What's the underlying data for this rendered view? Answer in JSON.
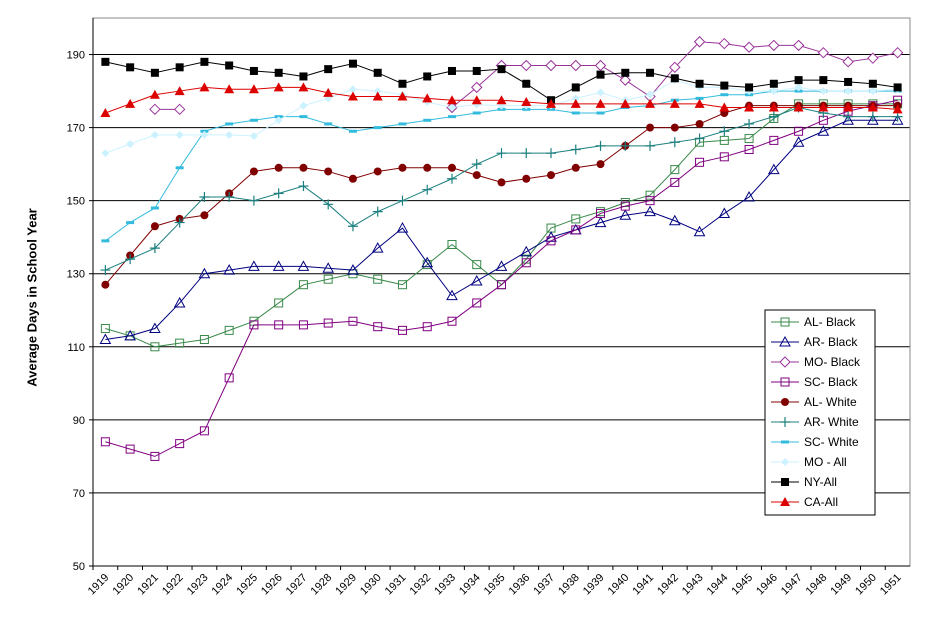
{
  "chart_data": {
    "type": "line",
    "title": "",
    "xlabel": "",
    "ylabel": "Average Days in School Year",
    "ylim": [
      50,
      200
    ],
    "yticks": [
      50,
      70,
      90,
      110,
      130,
      150,
      170,
      190
    ],
    "grid": "horizontal",
    "legend_position": "right",
    "categories": [
      "1919",
      "1920",
      "1921",
      "1922",
      "1923",
      "1924",
      "1925",
      "1926",
      "1927",
      "1928",
      "1929",
      "1930",
      "1931",
      "1932",
      "1933",
      "1934",
      "1935",
      "1936",
      "1937",
      "1938",
      "1939",
      "1940",
      "1941",
      "1942",
      "1943",
      "1944",
      "1945",
      "1946",
      "1947",
      "1948",
      "1949",
      "1950",
      "1951"
    ],
    "series": [
      {
        "name": "AL- Black",
        "color": "#3a8a4a",
        "marker": "square-open",
        "values": [
          115,
          113,
          110,
          111,
          112,
          114.5,
          117,
          122,
          127,
          128.5,
          130,
          128.5,
          127,
          132.5,
          138,
          132.5,
          127,
          134,
          142.5,
          145,
          147,
          149.5,
          151.5,
          158.5,
          166,
          166.5,
          167,
          172.5,
          176.5,
          176.5,
          176.5,
          176.5,
          176.5
        ]
      },
      {
        "name": "AR- Black",
        "color": "#000080",
        "marker": "triangle-open",
        "values": [
          112,
          113,
          115,
          122,
          130,
          131,
          132,
          132,
          132,
          131.5,
          131,
          137,
          142.5,
          133,
          124,
          128,
          132,
          136,
          140,
          142,
          144,
          146,
          147,
          144.5,
          141.5,
          146.5,
          151,
          158.5,
          166,
          169,
          172,
          172,
          172
        ]
      },
      {
        "name": "MO- Black",
        "color": "#993399",
        "marker": "diamond-open",
        "values": [
          null,
          null,
          175,
          175,
          null,
          null,
          null,
          null,
          null,
          null,
          null,
          null,
          null,
          null,
          175.5,
          181,
          187,
          187,
          187,
          187,
          187,
          183,
          178.5,
          186.5,
          193.5,
          193,
          192,
          192.5,
          192.5,
          190.5,
          188,
          189,
          190.5
        ]
      },
      {
        "name": "SC- Black",
        "color": "#800080",
        "marker": "square-open",
        "values": [
          84,
          82,
          80,
          83.5,
          87,
          101.5,
          116,
          116,
          116,
          116.5,
          117,
          115.5,
          114.5,
          115.5,
          117,
          122,
          127,
          133,
          139,
          142,
          146.5,
          148.5,
          150,
          155,
          160.5,
          162,
          164,
          166.5,
          169,
          172,
          174.5,
          176,
          177.5
        ]
      },
      {
        "name": "AL- White",
        "color": "#800000",
        "marker": "circle",
        "values": [
          127,
          135,
          143,
          145,
          146,
          152,
          158,
          159,
          159,
          158,
          156,
          158,
          159,
          159,
          159,
          157,
          155,
          156,
          157,
          159,
          160,
          165,
          170,
          170,
          171,
          174,
          176,
          176,
          176,
          176,
          176,
          176,
          176
        ]
      },
      {
        "name": "AR- White",
        "color": "#1b7f7f",
        "marker": "plus",
        "values": [
          131,
          134,
          137,
          144,
          151,
          151,
          150,
          152,
          154,
          149,
          143,
          147,
          150,
          153,
          156,
          160,
          163,
          163,
          163,
          164,
          165,
          165,
          165,
          166,
          167,
          169,
          171,
          173,
          175.5,
          174,
          173,
          173,
          173
        ]
      },
      {
        "name": "SC- White",
        "color": "#33bbdd",
        "marker": "dash",
        "values": [
          139,
          144,
          148,
          159,
          169,
          171,
          172,
          173,
          173,
          171,
          169,
          170,
          171,
          172,
          173,
          174,
          175,
          175,
          175,
          174,
          174,
          175.5,
          176,
          177.5,
          178,
          179,
          179,
          180,
          180,
          180,
          180,
          180,
          180
        ]
      },
      {
        "name": "MO - All",
        "color": "#ccf2ff",
        "marker": "diamond",
        "values": [
          163,
          165.5,
          168,
          168,
          168,
          168,
          167.7,
          172,
          176,
          178,
          180.5,
          180,
          179,
          177,
          175.5,
          176.3,
          176,
          176,
          176,
          178,
          179.6,
          177.5,
          179,
          183,
          181,
          181,
          180,
          180,
          181,
          180,
          180,
          180,
          180.5
        ]
      },
      {
        "name": "NY-All",
        "color": "#000000",
        "marker": "square",
        "values": [
          188,
          186.5,
          185,
          186.5,
          188,
          187,
          185.5,
          185,
          184,
          186,
          187.5,
          185,
          182,
          184,
          185.5,
          185.5,
          186,
          182,
          177.5,
          181,
          184.5,
          185,
          185,
          183.5,
          182,
          181.5,
          181,
          182,
          183,
          183,
          182.5,
          182,
          181
        ]
      },
      {
        "name": "CA-All",
        "color": "#dd0000",
        "marker": "triangle",
        "values": [
          174,
          176.5,
          179,
          180,
          181,
          180.5,
          180.5,
          181,
          181,
          179.5,
          178.5,
          178.5,
          178.5,
          178,
          177.5,
          177.5,
          177.5,
          177,
          176.5,
          176.5,
          176.5,
          176.5,
          176.5,
          176.5,
          176.5,
          175.5,
          175.5,
          175.5,
          175.5,
          175.5,
          175.5,
          175.5,
          175
        ]
      }
    ]
  }
}
